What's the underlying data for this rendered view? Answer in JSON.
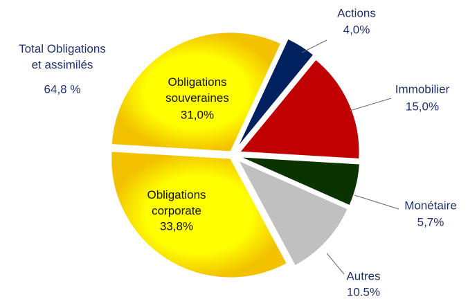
{
  "chart_data": {
    "type": "pie",
    "categories": [
      "Actions",
      "Immobilier",
      "Monétaire",
      "Autres",
      "Obligations\ncorporate",
      "Obligations\nsouveraines"
    ],
    "values": [
      4.0,
      15.0,
      5.7,
      10.5,
      33.8,
      31.0
    ],
    "value_labels": [
      "4,0%",
      "15,0%",
      "5,7%",
      "10.5%",
      "33,8%",
      "31,0%"
    ],
    "colors": [
      "#002060",
      "#c00000",
      "#0a3300",
      "#c0c0c0",
      "#ffee00",
      "#ffee00"
    ],
    "annotation": {
      "text": "Total Obligations\net assimilés",
      "value_label": "64,8 %"
    }
  }
}
